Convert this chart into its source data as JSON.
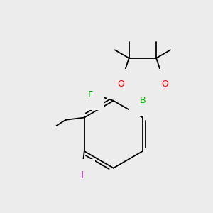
{
  "background_color": "#ececec",
  "bond_color": "#000000",
  "atom_colors": {
    "B": "#00bb00",
    "O": "#ff0000",
    "F": "#009900",
    "I": "#cc00cc",
    "C": "#000000"
  },
  "figsize": [
    3.0,
    3.0
  ],
  "dpi": 100
}
